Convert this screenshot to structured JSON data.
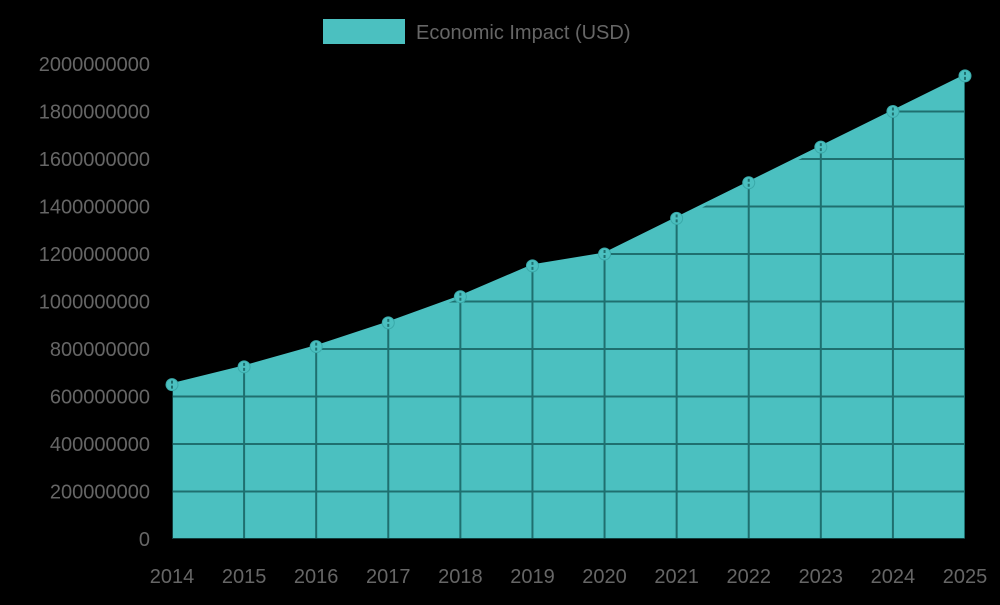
{
  "chart_data": {
    "type": "area",
    "title": "",
    "xlabel": "",
    "ylabel": "",
    "categories": [
      "2014",
      "2015",
      "2016",
      "2017",
      "2018",
      "2019",
      "2020",
      "2021",
      "2022",
      "2023",
      "2024",
      "2025"
    ],
    "series": [
      {
        "name": "Economic Impact (USD)",
        "values": [
          650000000,
          725000000,
          810000000,
          910000000,
          1020000000,
          1150000000,
          1200000000,
          1350000000,
          1500000000,
          1650000000,
          1800000000,
          1950000000
        ]
      }
    ],
    "ylim": [
      0,
      2000000000
    ],
    "yticks": [
      "0",
      "200000000",
      "400000000",
      "600000000",
      "800000000",
      "1000000000",
      "1200000000",
      "1400000000",
      "1600000000",
      "1800000000",
      "2000000000"
    ],
    "grid": true,
    "legend_position": "top"
  },
  "legend": {
    "label": "Economic Impact (USD)"
  },
  "colors": {
    "background": "#000000",
    "fill": "#4BC0C0",
    "grid": "#1f6f6f",
    "axis_text": "#666666"
  }
}
